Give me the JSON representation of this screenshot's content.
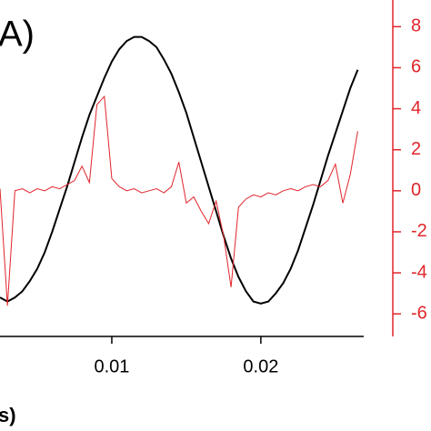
{
  "chart_data": {
    "type": "line",
    "title": "A)",
    "x_label": "s)",
    "x": [
      0.0025,
      0.003,
      0.0035,
      0.004,
      0.0045,
      0.005,
      0.0055,
      0.006,
      0.0065,
      0.007,
      0.0075,
      0.008,
      0.0085,
      0.009,
      0.0095,
      0.01,
      0.0105,
      0.011,
      0.0115,
      0.012,
      0.0125,
      0.013,
      0.0135,
      0.014,
      0.0145,
      0.015,
      0.0155,
      0.016,
      0.0165,
      0.017,
      0.0175,
      0.018,
      0.0185,
      0.019,
      0.0195,
      0.02,
      0.0205,
      0.021,
      0.0215,
      0.022,
      0.0225,
      0.023,
      0.0235,
      0.024,
      0.0245,
      0.025,
      0.0255,
      0.026,
      0.0265
    ],
    "series": [
      {
        "color": "#000000",
        "axis": "y2",
        "values": [
          -5.2,
          -5.4,
          -5.2,
          -4.9,
          -4.4,
          -3.8,
          -3.0,
          -2.0,
          -0.9,
          0.2,
          1.4,
          2.6,
          3.7,
          4.6,
          5.5,
          6.3,
          6.9,
          7.3,
          7.5,
          7.5,
          7.3,
          7.0,
          6.4,
          5.7,
          4.8,
          3.8,
          2.6,
          1.4,
          0.2,
          -1.0,
          -2.2,
          -3.3,
          -4.2,
          -4.9,
          -5.4,
          -5.5,
          -5.4,
          -5.0,
          -4.5,
          -3.8,
          -2.9,
          -1.8,
          -0.7,
          0.5,
          1.7,
          2.8,
          3.9,
          5.0,
          5.9
        ]
      },
      {
        "color": "#e0252b",
        "axis": "y2",
        "values": [
          0.1,
          -5.6,
          0.0,
          0.1,
          -0.1,
          0.1,
          0.0,
          0.2,
          0.1,
          0.3,
          0.5,
          1.2,
          0.4,
          4.2,
          4.6,
          0.6,
          0.2,
          0.0,
          0.1,
          -0.1,
          0.0,
          0.1,
          -0.1,
          0.2,
          1.4,
          -0.6,
          -0.3,
          -1.0,
          -1.6,
          -0.5,
          -2.2,
          -4.7,
          -0.8,
          -0.4,
          -0.2,
          -0.3,
          -0.1,
          -0.2,
          0.0,
          0.1,
          0.0,
          0.2,
          0.3,
          0.2,
          0.5,
          1.3,
          -0.6,
          0.8,
          2.9
        ]
      }
    ],
    "xlim": [
      0.0025,
      0.0269
    ],
    "xticks": [
      0.01,
      0.02
    ],
    "y2lim": [
      -7.1,
      9.3
    ],
    "y2ticks": [
      8,
      6,
      4,
      2,
      0,
      -2,
      -4,
      -6
    ],
    "y2color": "#e0252b"
  }
}
